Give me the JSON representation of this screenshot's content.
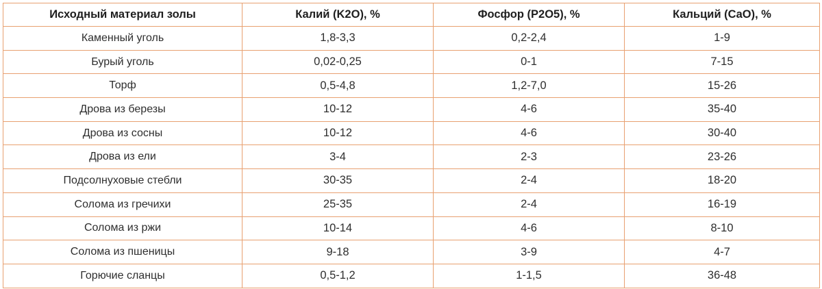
{
  "table": {
    "headers": [
      "Исходный материал золы",
      "Калий (K2O), %",
      "Фосфор (P2O5), %",
      "Кальций (CaO), %"
    ],
    "rows": [
      [
        "Каменный уголь",
        "1,8-3,3",
        "0,2-2,4",
        "1-9"
      ],
      [
        "Бурый уголь",
        "0,02-0,25",
        "0-1",
        "7-15"
      ],
      [
        "Торф",
        "0,5-4,8",
        "1,2-7,0",
        "15-26"
      ],
      [
        "Дрова из березы",
        "10-12",
        "4-6",
        "35-40"
      ],
      [
        "Дрова из сосны",
        "10-12",
        "4-6",
        "30-40"
      ],
      [
        "Дрова из ели",
        "3-4",
        "2-3",
        "23-26"
      ],
      [
        "Подсолнуховые стебли",
        "30-35",
        "2-4",
        "18-20"
      ],
      [
        "Солома из гречихи",
        "25-35",
        "2-4",
        "16-19"
      ],
      [
        "Солома из ржи",
        "10-14",
        "4-6",
        "8-10"
      ],
      [
        "Солома из пшеницы",
        "9-18",
        "3-9",
        "4-7"
      ],
      [
        "Горючие сланцы",
        "0,5-1,2",
        "1-1,5",
        "36-48"
      ]
    ],
    "border_color": "#e8a070"
  }
}
